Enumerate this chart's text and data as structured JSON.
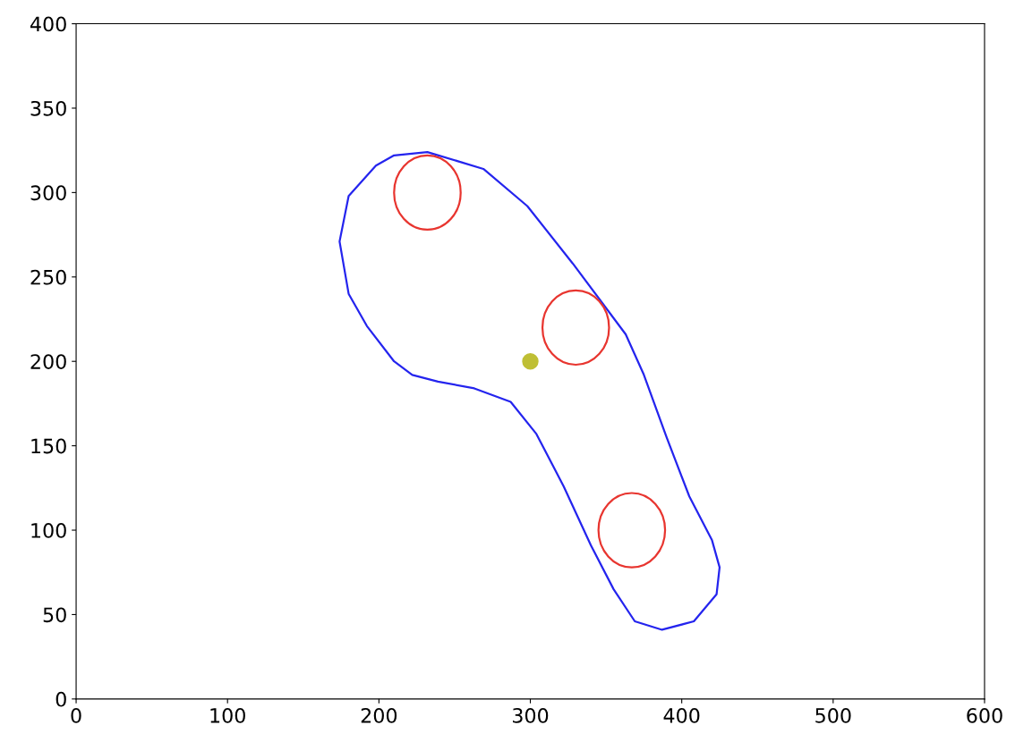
{
  "chart_data": {
    "type": "scatter",
    "xlim": [
      0,
      600
    ],
    "ylim": [
      0,
      400
    ],
    "xticks": [
      0,
      100,
      200,
      300,
      400,
      500,
      600
    ],
    "yticks": [
      0,
      50,
      100,
      150,
      200,
      250,
      300,
      350,
      400
    ],
    "grid": false,
    "legend": false,
    "marker": "circle",
    "series": [
      {
        "color": "#bfbf35",
        "x": [
          300
        ],
        "values": [
          200
        ]
      }
    ]
  }
}
